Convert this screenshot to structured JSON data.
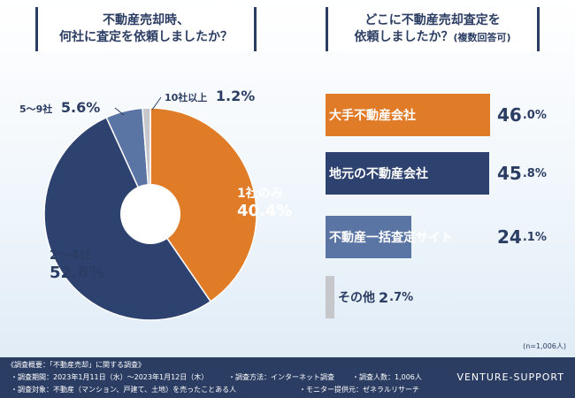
{
  "q1": {
    "line1": "不動産売却時、",
    "line2": "何社に査定を依頼しましたか？"
  },
  "q2": {
    "line1": "どこに不動産売却査定を",
    "line2": "依頼しましたか？",
    "note": "(複数回答可)"
  },
  "pie": {
    "slices": [
      {
        "label": "1社のみ",
        "value": "40.4%",
        "color": "#e07b28"
      },
      {
        "label": "2〜4社",
        "value": "52.8%",
        "color": "#2e4270"
      },
      {
        "label": "5〜9社",
        "value": "5.6%",
        "color": "#5a74a3"
      },
      {
        "label": "10社以上",
        "value": "1.2%",
        "color": "#c5c7cb"
      }
    ]
  },
  "bars": [
    {
      "label": "大手不動産会社",
      "value": "46.0%",
      "color": "#e07b28"
    },
    {
      "label": "地元の不動産会社",
      "value": "45.8%",
      "color": "#2e4270"
    },
    {
      "label": "不動産一括査定サイト",
      "value": "24.1%",
      "color": "#5a74a3"
    },
    {
      "label": "その他",
      "value": "2.7%",
      "color": "#c5c7cb"
    }
  ],
  "chart_data": [
    {
      "type": "pie",
      "categories": [
        "1社のみ",
        "2〜4社",
        "5〜9社",
        "10社以上"
      ],
      "values": [
        40.4,
        52.8,
        5.6,
        1.2
      ],
      "title": "不動産売却時、何社に査定を依頼しましたか？"
    },
    {
      "type": "bar",
      "categories": [
        "大手不動産会社",
        "地元の不動産会社",
        "不動産一括査定サイト",
        "その他"
      ],
      "values": [
        46.0,
        45.8,
        24.1,
        2.7
      ],
      "title": "どこに不動産売却査定を依頼しましたか？(複数回答可)"
    }
  ],
  "sample_note": "(n=1,006人)",
  "footer": {
    "overview": "《調査概要：「不動産売却」に関する調査》",
    "period": "・調査期間：2023年1月11日（水）〜2023年1月12日（木）",
    "method": "・調査方法：インターネット調査",
    "count": "・調査人数：1,006人",
    "target": "・調査対象：不動産（マンション、戸建て、土地）を売ったことある人",
    "provider": "・モニター提供元：ゼネラルリサーチ",
    "brand": "VENTURE-SUPPORT"
  }
}
